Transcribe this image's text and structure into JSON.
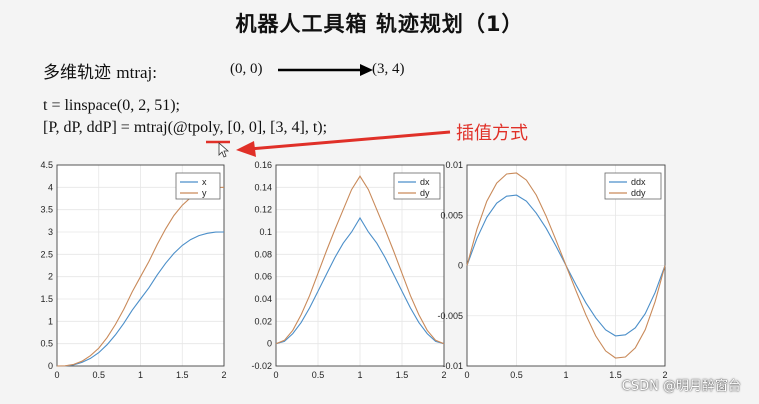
{
  "title": "机器人工具箱  轨迹规划（1）",
  "traj_label": "多维轨迹",
  "traj_func": "mtraj:",
  "point_from": "(0, 0)",
  "point_to": "(3, 4)",
  "code_line1": "t = linspace(0, 2, 51);",
  "code_line2": "[P, dP, ddP] = mtraj(@tpoly, [0, 0], [3, 4], t);",
  "annotation": "插值方式",
  "watermark": "CSDN @明月醉窗台",
  "colors": {
    "series1": "#4c8fc9",
    "series2": "#c98a5a",
    "annotation": "#e03028"
  },
  "chart_data": [
    {
      "type": "line",
      "xlim": [
        0,
        2
      ],
      "ylim": [
        0,
        4.5
      ],
      "xticks": [
        "0",
        "0.5",
        "1",
        "1.5",
        "2"
      ],
      "yticks": [
        "0",
        "0.5",
        "1",
        "1.5",
        "2",
        "2.5",
        "3",
        "3.5",
        "4",
        "4.5"
      ],
      "legend_position": "top-right",
      "grid": true,
      "x": [
        0,
        0.1,
        0.2,
        0.3,
        0.4,
        0.5,
        0.6,
        0.7,
        0.8,
        0.9,
        1.0,
        1.1,
        1.2,
        1.3,
        1.4,
        1.5,
        1.6,
        1.7,
        1.8,
        1.9,
        2.0
      ],
      "series": [
        {
          "name": "x",
          "values": [
            0,
            0.003,
            0.026,
            0.081,
            0.17,
            0.3,
            0.476,
            0.696,
            0.956,
            1.25,
            1.5,
            1.75,
            2.04,
            2.3,
            2.52,
            2.7,
            2.83,
            2.92,
            2.97,
            2.997,
            3.0
          ]
        },
        {
          "name": "y",
          "values": [
            0,
            0.004,
            0.035,
            0.108,
            0.23,
            0.4,
            0.635,
            0.928,
            1.27,
            1.66,
            2.0,
            2.34,
            2.72,
            3.07,
            3.37,
            3.6,
            3.77,
            3.89,
            3.96,
            3.996,
            4.0
          ]
        }
      ]
    },
    {
      "type": "line",
      "xlim": [
        0,
        2
      ],
      "ylim": [
        -0.02,
        0.16
      ],
      "xticks": [
        "0",
        "0.5",
        "1",
        "1.5",
        "2"
      ],
      "yticks": [
        "-0.02",
        "0",
        "0.02",
        "0.04",
        "0.06",
        "0.08",
        "0.1",
        "0.12",
        "0.14",
        "0.16"
      ],
      "legend_position": "top-right",
      "grid": true,
      "x": [
        0,
        0.1,
        0.2,
        0.3,
        0.4,
        0.5,
        0.6,
        0.7,
        0.8,
        0.9,
        1.0,
        1.1,
        1.2,
        1.3,
        1.4,
        1.5,
        1.6,
        1.7,
        1.8,
        1.9,
        2.0
      ],
      "series": [
        {
          "name": "dx",
          "values": [
            0,
            0.002,
            0.009,
            0.019,
            0.032,
            0.047,
            0.062,
            0.077,
            0.09,
            0.1,
            0.1125,
            0.1,
            0.09,
            0.077,
            0.062,
            0.047,
            0.032,
            0.019,
            0.009,
            0.002,
            0
          ]
        },
        {
          "name": "dy",
          "values": [
            0,
            0.003,
            0.012,
            0.026,
            0.043,
            0.063,
            0.083,
            0.102,
            0.12,
            0.138,
            0.15,
            0.138,
            0.12,
            0.102,
            0.083,
            0.063,
            0.043,
            0.026,
            0.012,
            0.003,
            0
          ]
        }
      ]
    },
    {
      "type": "line",
      "xlim": [
        0,
        2
      ],
      "ylim": [
        -0.01,
        0.01
      ],
      "xticks": [
        "0",
        "0.5",
        "1",
        "1.5",
        "2"
      ],
      "yticks": [
        "-0.01",
        "-0.005",
        "0",
        "0.005",
        "0.01"
      ],
      "legend_position": "top-right",
      "grid": true,
      "x": [
        0,
        0.1,
        0.2,
        0.3,
        0.4,
        0.5,
        0.6,
        0.7,
        0.8,
        0.9,
        1.0,
        1.1,
        1.2,
        1.3,
        1.4,
        1.5,
        1.6,
        1.7,
        1.8,
        1.9,
        2.0
      ],
      "series": [
        {
          "name": "ddx",
          "values": [
            0,
            0.0027,
            0.0048,
            0.0062,
            0.0069,
            0.007,
            0.0064,
            0.0052,
            0.0037,
            0.0019,
            0,
            -0.0019,
            -0.0037,
            -0.0052,
            -0.0064,
            -0.007,
            -0.0069,
            -0.0062,
            -0.0048,
            -0.0027,
            0
          ]
        },
        {
          "name": "ddy",
          "values": [
            0,
            0.0036,
            0.0064,
            0.0082,
            0.0091,
            0.0092,
            0.0085,
            0.007,
            0.0049,
            0.0025,
            0,
            -0.0025,
            -0.0049,
            -0.007,
            -0.0085,
            -0.0092,
            -0.0091,
            -0.0082,
            -0.0064,
            -0.0036,
            0
          ]
        }
      ]
    }
  ]
}
